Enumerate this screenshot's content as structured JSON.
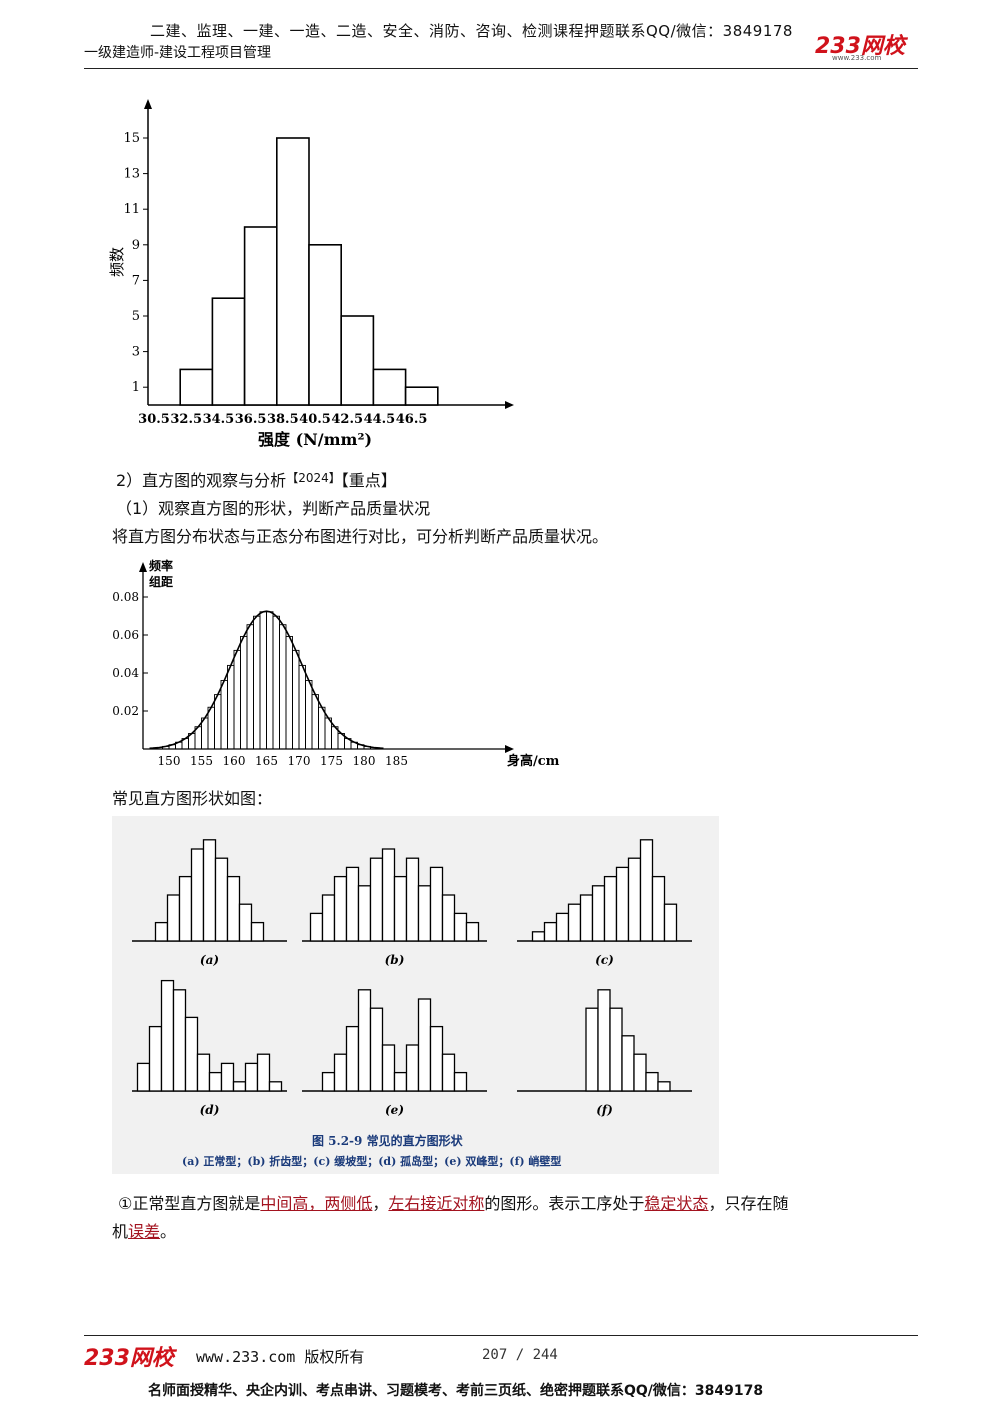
{
  "header": {
    "top_line": "二建、监理、一建、一造、二造、安全、消防、咨询、检测课程押题联系QQ/微信：3849178",
    "subtitle": "一级建造师-建设工程项目管理",
    "logo": "233网校",
    "logo_url": "www.233.com"
  },
  "chart_data": [
    {
      "type": "bar",
      "ylabel": "频数",
      "xlabel": "强度 (N/mm²)",
      "x_ticks": [
        "30.5",
        "32.5",
        "34.5",
        "36.5",
        "38.5",
        "40.5",
        "42.5",
        "44.5",
        "46.5"
      ],
      "y_ticks": [
        "1",
        "3",
        "5",
        "7",
        "9",
        "11",
        "13",
        "15"
      ],
      "values": [
        2,
        6,
        10,
        15,
        9,
        5,
        2,
        1
      ],
      "ylim": [
        0,
        17
      ]
    },
    {
      "type": "bar",
      "ylabel": "频率\n组距",
      "ylabel_line1": "频率",
      "ylabel_line2": "组距",
      "xlabel": "身高/cm",
      "x_ticks": [
        "150",
        "155",
        "160",
        "165",
        "170",
        "175",
        "180",
        "185"
      ],
      "y_ticks": [
        "0.02",
        "0.04",
        "0.06",
        "0.08"
      ],
      "mean": 165,
      "sd": 5.5,
      "ylim": [
        0,
        0.09
      ]
    },
    {
      "type": "bar",
      "title": "图 5.2-9   常见的直方图形状",
      "caption": "(a) 正常型；(b) 折齿型；(c) 缓坡型；(d) 孤岛型；(e) 双峰型；(f) 峭壁型",
      "panels": [
        {
          "label": "(a)",
          "values": [
            2,
            5,
            7,
            10,
            11,
            9,
            7,
            4,
            2
          ]
        },
        {
          "label": "(b)",
          "values": [
            3,
            5,
            7,
            8,
            6,
            9,
            10,
            7,
            9,
            6,
            8,
            5,
            3,
            2
          ]
        },
        {
          "label": "(c)",
          "values": [
            1,
            2,
            3,
            4,
            5,
            6,
            7,
            8,
            9,
            11,
            7,
            4
          ]
        },
        {
          "label": "(d)",
          "values": [
            3,
            7,
            12,
            11,
            8,
            4,
            2,
            3,
            1,
            3,
            4,
            1
          ]
        },
        {
          "label": "(e)",
          "values": [
            2,
            4,
            7,
            11,
            9,
            5,
            2,
            5,
            10,
            7,
            4,
            2
          ]
        },
        {
          "label": "(f)",
          "values": [
            9,
            11,
            9,
            6,
            4,
            2,
            1
          ]
        }
      ]
    }
  ],
  "content": {
    "section": "2）直方图的观察与分析",
    "section_tag1": "【2024】",
    "section_tag2": "【重点】",
    "sub1": "（1）观察直方图的形状，判断产品质量状况",
    "para1": "将直方图分布状态与正态分布图进行对比，可分析判断产品质量状况。",
    "para2": "常见直方图形状如图：",
    "p3_a": "①正常型直方图就是",
    "p3_h1": "中间高，两侧低",
    "p3_b": "，",
    "p3_h2": "左右接近对称",
    "p3_c": "的图形。表示工序处于",
    "p3_h3": "稳定状态",
    "p3_d": "，只存在随",
    "p3_e": "机",
    "p3_h4": "误差",
    "p3_f": "。"
  },
  "footer": {
    "logo": "233网校",
    "url": "www.233.com 版权所有",
    "page": "207 / 244",
    "bottom_line": "名师面授精华、央企内训、考点串讲、习题模考、考前三页纸、绝密押题联系QQ/微信：3849178"
  }
}
